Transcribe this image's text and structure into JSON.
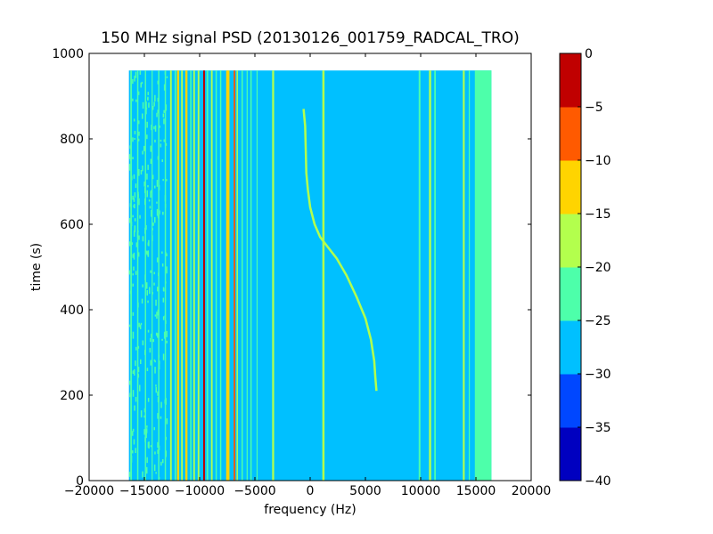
{
  "chart_data": {
    "type": "heatmap",
    "title": "150 MHz signal PSD (20130126_001759_RADCAL_TRO)",
    "xlabel": "frequency (Hz)",
    "ylabel": "time (s)",
    "xlim": [
      -20000,
      20000
    ],
    "ylim": [
      0,
      1000
    ],
    "x_ticks": [
      -20000,
      -15000,
      -10000,
      -5000,
      0,
      5000,
      10000,
      15000,
      20000
    ],
    "x_tick_labels": [
      "−20000",
      "−15000",
      "−10000",
      "−5000",
      "0",
      "5000",
      "10000",
      "15000",
      "20000"
    ],
    "y_ticks": [
      0,
      200,
      400,
      600,
      800,
      1000
    ],
    "y_tick_labels": [
      "0",
      "200",
      "400",
      "600",
      "800",
      "1000"
    ],
    "data_extent": {
      "freq": [
        -16400,
        16400
      ],
      "time": [
        0,
        960
      ]
    },
    "background_level": -27.5,
    "edge_band": {
      "freq": [
        14900,
        16400
      ],
      "level": -22.5
    },
    "left_speckle_band": {
      "freq": [
        -16400,
        -13000
      ],
      "level": -22.5
    },
    "lines": [
      {
        "freq": -16200,
        "width": 150,
        "level": -22.5
      },
      {
        "freq": -15600,
        "width": 120,
        "level": -22.5
      },
      {
        "freq": -14900,
        "width": 120,
        "level": -22.5
      },
      {
        "freq": -14300,
        "width": 100,
        "level": -22.5
      },
      {
        "freq": -13700,
        "width": 120,
        "level": -22.5
      },
      {
        "freq": -13100,
        "width": 120,
        "level": -22.5
      },
      {
        "freq": -12600,
        "width": 150,
        "level": -17.5
      },
      {
        "freq": -12200,
        "width": 120,
        "level": -22.5
      },
      {
        "freq": -11950,
        "width": 200,
        "level": -12.5
      },
      {
        "freq": -11600,
        "width": 150,
        "level": -17.5
      },
      {
        "freq": -11200,
        "width": 200,
        "level": -12.5
      },
      {
        "freq": -10800,
        "width": 120,
        "level": -22.5
      },
      {
        "freq": -10500,
        "width": 150,
        "level": -17.5
      },
      {
        "freq": -10100,
        "width": 150,
        "level": -17.5
      },
      {
        "freq": -9600,
        "width": 160,
        "level": -2.5
      },
      {
        "freq": -9300,
        "width": 150,
        "level": -22.5
      },
      {
        "freq": -8900,
        "width": 150,
        "level": -17.5
      },
      {
        "freq": -8500,
        "width": 120,
        "level": -22.5
      },
      {
        "freq": -8100,
        "width": 120,
        "level": -22.5
      },
      {
        "freq": -7450,
        "width": 300,
        "level": -12.5
      },
      {
        "freq": -6850,
        "width": 150,
        "level": -7.5
      },
      {
        "freq": -6600,
        "width": 120,
        "level": -17.5
      },
      {
        "freq": -6150,
        "width": 120,
        "level": -22.5
      },
      {
        "freq": -5700,
        "width": 100,
        "level": -22.5
      },
      {
        "freq": -5350,
        "width": 120,
        "level": -22.5
      },
      {
        "freq": -4800,
        "width": 100,
        "level": -22.5
      },
      {
        "freq": -3350,
        "width": 180,
        "level": -17.5
      },
      {
        "freq": 1200,
        "width": 200,
        "level": -17.5
      },
      {
        "freq": 9900,
        "width": 160,
        "level": -22.5
      },
      {
        "freq": 10850,
        "width": 200,
        "level": -17.5
      },
      {
        "freq": 11300,
        "width": 140,
        "level": -22.5
      },
      {
        "freq": 13900,
        "width": 170,
        "level": -17.5
      },
      {
        "freq": 14400,
        "width": 100,
        "level": -22.5
      }
    ],
    "drifting_signal": {
      "level": -17.5,
      "points": [
        [
          6000,
          210
        ],
        [
          5900,
          240
        ],
        [
          5800,
          280
        ],
        [
          5500,
          330
        ],
        [
          5000,
          380
        ],
        [
          4200,
          430
        ],
        [
          3300,
          480
        ],
        [
          2400,
          520
        ],
        [
          1500,
          550
        ],
        [
          900,
          570
        ],
        [
          400,
          600
        ],
        [
          0,
          640
        ],
        [
          -200,
          680
        ],
        [
          -350,
          720
        ],
        [
          -400,
          780
        ],
        [
          -450,
          830
        ],
        [
          -600,
          870
        ]
      ]
    },
    "colorbar": {
      "levels": [
        -40,
        -35,
        -30,
        -25,
        -20,
        -15,
        -10,
        -5,
        0
      ],
      "tick_labels": [
        "−40",
        "−35",
        "−30",
        "−25",
        "−20",
        "−15",
        "−10",
        "−5",
        "0"
      ],
      "colors": [
        "#0000c0",
        "#0047ff",
        "#00c0ff",
        "#4dffaa",
        "#b3ff4d",
        "#ffd400",
        "#ff5a00",
        "#c00000"
      ]
    }
  }
}
